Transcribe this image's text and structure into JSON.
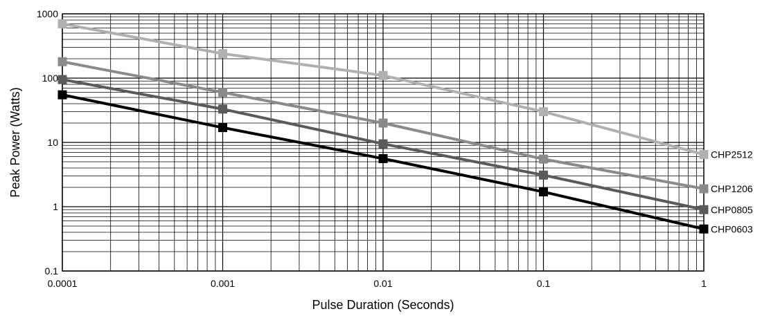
{
  "chart_data": {
    "type": "line",
    "title": "",
    "xlabel": "Pulse Duration (Seconds)",
    "ylabel": "Peak Power (Watts)",
    "xscale": "log",
    "yscale": "log",
    "xlim": [
      0.0001,
      1
    ],
    "ylim": [
      0.1,
      1000
    ],
    "grid": true,
    "x_tick_labels": [
      "0.0001",
      "0.001",
      "0.01",
      "0.1",
      "1"
    ],
    "y_tick_labels": [
      "0.1",
      "1",
      "10",
      "100",
      "1000"
    ],
    "legend": "direct labels at right end of each line",
    "x": [
      0.0001,
      0.001,
      0.01,
      0.1,
      1
    ],
    "series": [
      {
        "name": "CHP2512",
        "color": "#b0b0b0",
        "values": [
          700,
          240,
          110,
          30,
          6.5
        ]
      },
      {
        "name": "CHP1206",
        "color": "#8a8a8a",
        "values": [
          180,
          60,
          20,
          5.5,
          1.9
        ]
      },
      {
        "name": "CHP0805",
        "color": "#5a5a5a",
        "values": [
          95,
          33,
          9.5,
          3.1,
          0.9
        ]
      },
      {
        "name": "CHP0603",
        "color": "#000000",
        "values": [
          55,
          17,
          5.6,
          1.7,
          0.45
        ]
      }
    ]
  }
}
